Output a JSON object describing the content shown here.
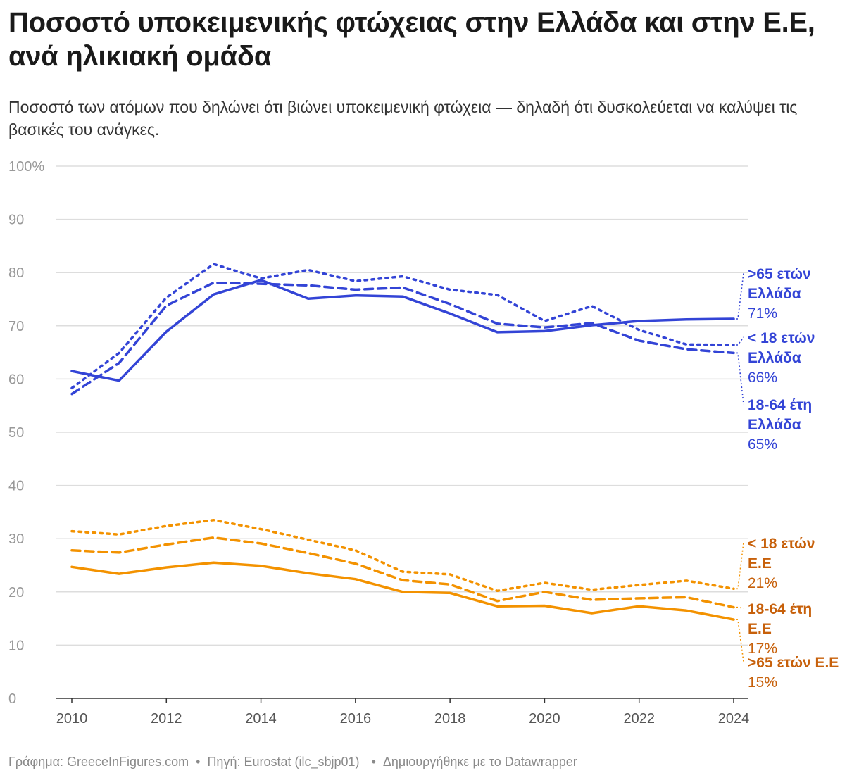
{
  "title": "Ποσοστό υποκειμενικής φτώχειας στην Ελλάδα και στην Ε.Ε, ανά ηλικιακή ομάδα",
  "subtitle": "Ποσοστό των ατόμων που δηλώνει ότι βιώνει υποκειμενική φτώχεια — δηλαδή ότι δυσκολεύεται να καλύψει τις βασικές του ανάγκες.",
  "footer": {
    "credit": "Γράφημα: GreeceInFigures.com",
    "source": "Πηγή: Eurostat (ilc_sbjp01)",
    "tool": "Δημιουργήθηκε με το Datawrapper",
    "separator": "•"
  },
  "colors": {
    "greece": "#3344d6",
    "eu": "#f39200",
    "eu_label": "#c7600a",
    "grid": "#dddddd",
    "axis": "#333333",
    "tick": "#999999"
  },
  "chart_data": {
    "type": "line",
    "x": [
      2010,
      2011,
      2012,
      2013,
      2014,
      2015,
      2016,
      2017,
      2018,
      2019,
      2020,
      2021,
      2022,
      2023,
      2024
    ],
    "ylim": [
      0,
      100
    ],
    "xlim": [
      2010,
      2024
    ],
    "y_ticks": [
      0,
      10,
      20,
      30,
      40,
      50,
      60,
      70,
      80,
      90,
      100
    ],
    "y_tick_labels": [
      "0",
      "10",
      "20",
      "30",
      "40",
      "50",
      "60",
      "70",
      "80",
      "90",
      "100%"
    ],
    "x_ticks": [
      2010,
      2012,
      2014,
      2016,
      2018,
      2020,
      2022,
      2024
    ],
    "grid": "horizontal",
    "legend": "direct labels at right",
    "series": [
      {
        "name": ">65 ετών Ελλάδα",
        "group": "Ελλάδα",
        "dash": "solid",
        "label_lines": [
          ">65 ετών",
          "Ελλάδα"
        ],
        "end_label": "71%",
        "values": [
          61.5,
          59.7,
          68.9,
          75.9,
          78.6,
          75.1,
          75.7,
          75.5,
          72.3,
          68.8,
          69.0,
          70.1,
          70.9,
          71.2,
          71.3
        ]
      },
      {
        "name": "< 18 ετών Ελλάδα",
        "group": "Ελλάδα",
        "dash": "dotted",
        "label_lines": [
          "< 18 ετών",
          "Ελλάδα"
        ],
        "end_label": "66%",
        "values": [
          58.3,
          64.9,
          75.3,
          81.6,
          78.9,
          80.5,
          78.4,
          79.3,
          76.8,
          75.8,
          70.9,
          73.7,
          69.2,
          66.5,
          66.4
        ]
      },
      {
        "name": "18-64 έτη Ελλάδα",
        "group": "Ελλάδα",
        "dash": "dashed",
        "label_lines": [
          "18-64 έτη",
          "Ελλάδα"
        ],
        "end_label": "65%",
        "values": [
          57.2,
          63.0,
          73.8,
          78.1,
          77.9,
          77.6,
          76.8,
          77.2,
          74.1,
          70.4,
          69.7,
          70.5,
          67.2,
          65.6,
          64.9
        ]
      },
      {
        "name": "< 18 ετών Ε.Ε",
        "group": "Ε.Ε",
        "dash": "dotted",
        "label_lines": [
          "< 18 ετών",
          "Ε.Ε"
        ],
        "end_label": "21%",
        "values": [
          31.4,
          30.8,
          32.4,
          33.5,
          31.8,
          29.8,
          27.8,
          23.8,
          23.3,
          20.2,
          21.7,
          20.4,
          21.3,
          22.1,
          20.6
        ]
      },
      {
        "name": "18-64 έτη Ε.Ε",
        "group": "Ε.Ε",
        "dash": "dashed",
        "label_lines": [
          "18-64 έτη",
          "Ε.Ε"
        ],
        "end_label": "17%",
        "values": [
          27.8,
          27.4,
          28.9,
          30.2,
          29.1,
          27.3,
          25.3,
          22.2,
          21.4,
          18.3,
          20.0,
          18.5,
          18.8,
          19.0,
          17.1
        ]
      },
      {
        "name": ">65 ετών Ε.Ε",
        "group": "Ε.Ε",
        "dash": "solid",
        "label_lines": [
          ">65 ετών Ε.Ε"
        ],
        "end_label": "15%",
        "values": [
          24.7,
          23.4,
          24.6,
          25.5,
          24.9,
          23.5,
          22.4,
          20.0,
          19.8,
          17.3,
          17.4,
          16.0,
          17.3,
          16.5,
          14.8
        ]
      }
    ]
  }
}
